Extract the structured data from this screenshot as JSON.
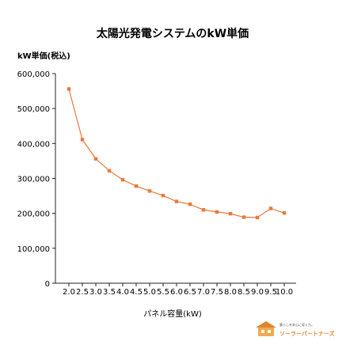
{
  "chart_data": {
    "type": "line",
    "title": "太陽光発電システムのkW単価",
    "ylabel": "kW単価(税込)",
    "xlabel": "パネル容量(kW)",
    "categories": [
      "2.0",
      "2.5",
      "3.0",
      "3.5",
      "4.0",
      "4.5",
      "5.0",
      "5.5",
      "6.0",
      "6.5",
      "7.0",
      "7.5",
      "8.0",
      "8.5",
      "9.0",
      "9.5",
      "10.0"
    ],
    "series": [
      {
        "values": [
          556000,
          411000,
          356000,
          322000,
          296000,
          278000,
          264000,
          251000,
          234000,
          226000,
          210000,
          204000,
          199000,
          189000,
          188000,
          214000,
          201000
        ]
      }
    ],
    "ylim": [
      0,
      600000
    ],
    "yticks": [
      0,
      100000,
      200000,
      300000,
      400000,
      500000,
      600000
    ],
    "ytick_labels": [
      "0",
      "100,000",
      "200,000",
      "300,000",
      "400,000",
      "500,000",
      "600,000"
    ],
    "grid": false,
    "color": "#e8793a"
  },
  "logo": {
    "tagline": "暮らしを安心に導く力。",
    "name": "ソーラーパートナーズ",
    "color": "#e0852f"
  }
}
